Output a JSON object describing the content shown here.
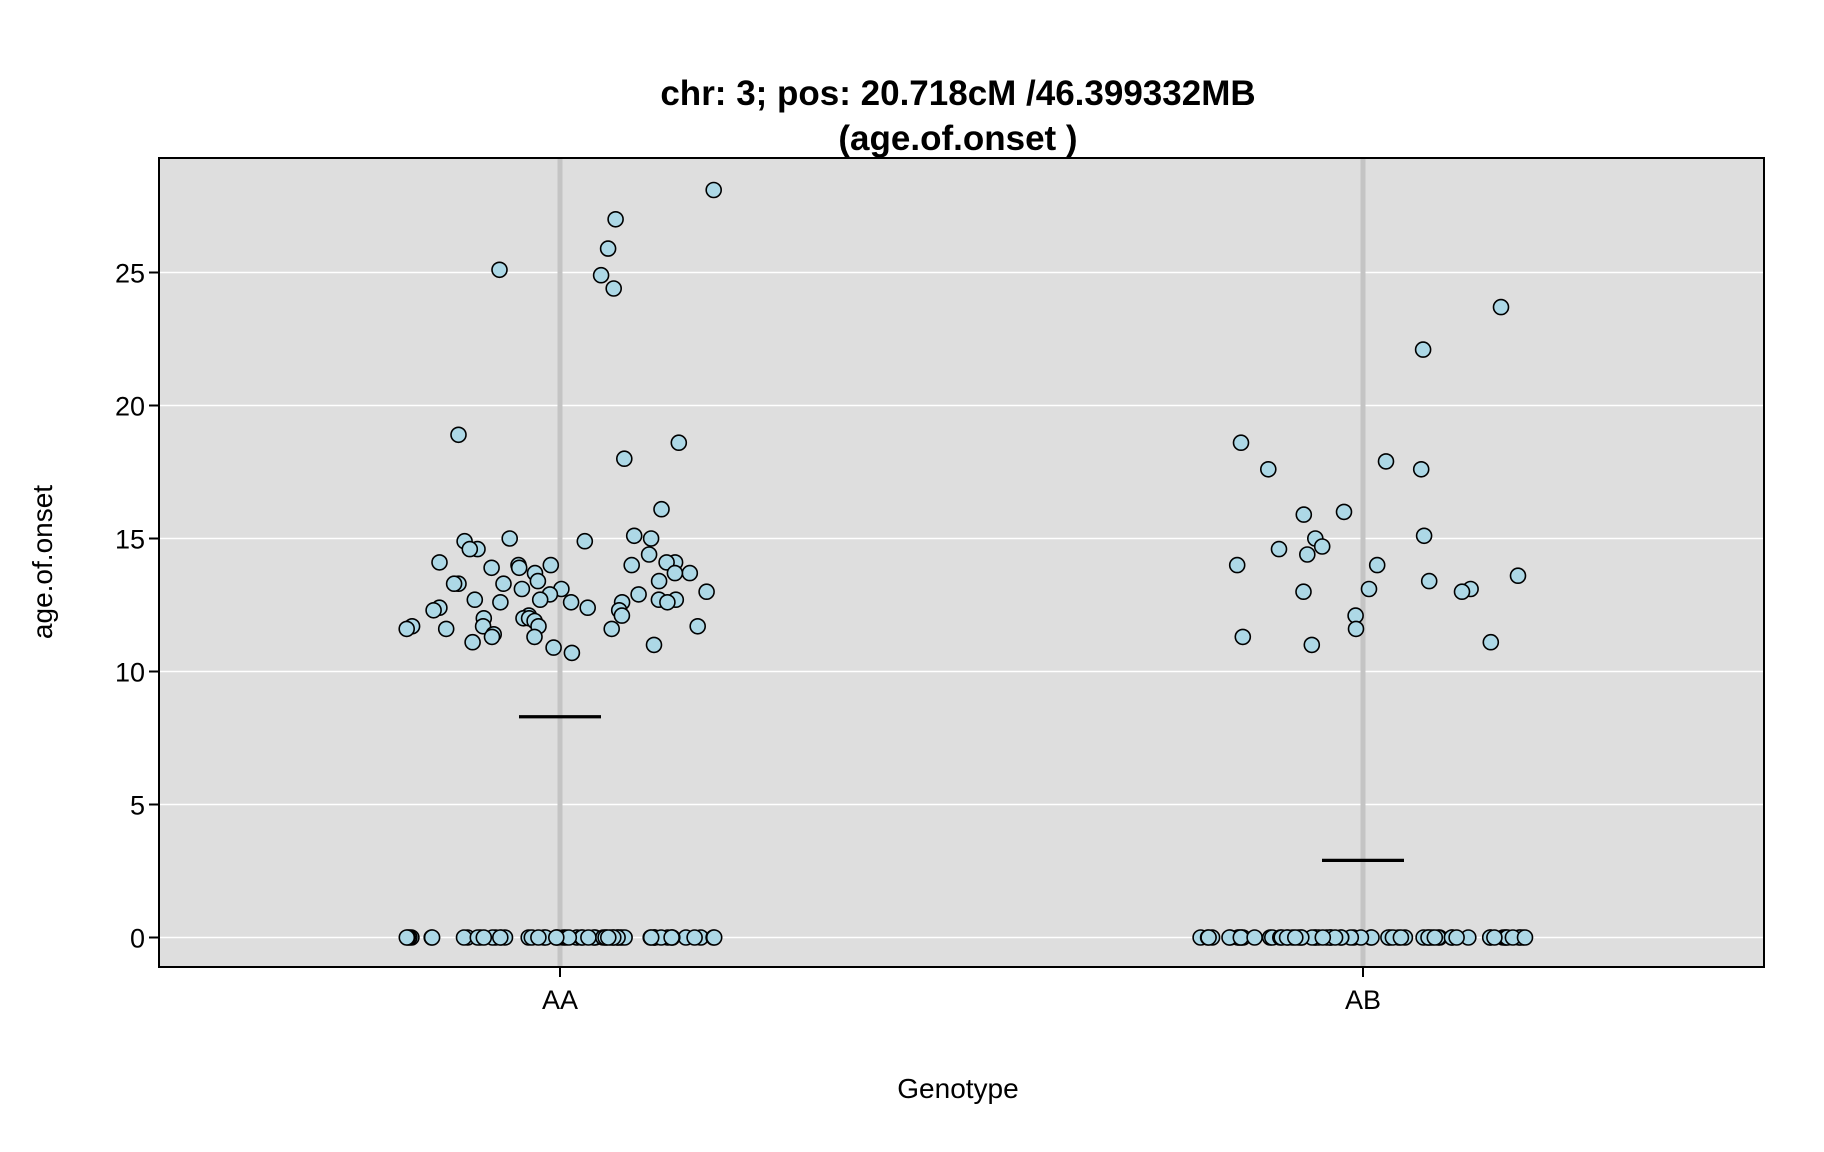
{
  "chart_data": {
    "type": "scatter",
    "title": "chr: 3; pos: 20.718cM /46.399332MB",
    "subtitle": "(age.of.onset )",
    "xlabel": "Genotype",
    "ylabel": "age.of.onset",
    "categories": [
      "AA",
      "AB"
    ],
    "ylim": [
      -1.1,
      29.2
    ],
    "yticks": [
      0,
      5,
      10,
      15,
      20,
      25
    ],
    "grid": true,
    "colors": {
      "panel_background": "#dedede",
      "point_fill": "#add8e6",
      "point_stroke": "#000000",
      "category_line": "#c4c4c4",
      "gridline": "#ffffff"
    },
    "means": [
      8.3,
      2.9
    ],
    "series": [
      {
        "category": "AA",
        "values": [
          25.9,
          25.1,
          24.9,
          28.1,
          27.0,
          24.4,
          18.9,
          18.6,
          18.0,
          16.1,
          15.1,
          15.0,
          15.0,
          14.9,
          14.9,
          14.6,
          14.6,
          14.4,
          14.1,
          14.1,
          14.1,
          14.0,
          14.0,
          14.0,
          13.9,
          13.9,
          13.7,
          13.7,
          13.7,
          13.4,
          13.4,
          13.3,
          13.3,
          13.3,
          13.1,
          13.1,
          13.0,
          12.9,
          12.9,
          12.7,
          12.7,
          12.7,
          12.7,
          12.6,
          12.6,
          12.6,
          12.6,
          12.4,
          12.4,
          12.3,
          12.3,
          12.1,
          12.1,
          12.0,
          12.0,
          12.0,
          11.9,
          11.7,
          11.7,
          11.7,
          11.7,
          11.6,
          11.6,
          11.6,
          11.4,
          11.3,
          11.3,
          11.1,
          11.0,
          10.9,
          10.7,
          0,
          0,
          0,
          0,
          0,
          0,
          0,
          0,
          0,
          0,
          0,
          0,
          0,
          0,
          0,
          0,
          0,
          0,
          0,
          0,
          0,
          0,
          0,
          0,
          0,
          0,
          0,
          0,
          0,
          0,
          0,
          0,
          0,
          0,
          0,
          0,
          0,
          0,
          0,
          0,
          0,
          0,
          0,
          0,
          0,
          0,
          0,
          0,
          0,
          0,
          0,
          0,
          0,
          0,
          0,
          0,
          0,
          0,
          0,
          0
        ]
      },
      {
        "category": "AB",
        "values": [
          23.7,
          22.1,
          18.6,
          17.9,
          17.6,
          17.6,
          16.0,
          15.9,
          15.1,
          15.0,
          14.7,
          14.6,
          14.4,
          14.0,
          14.0,
          13.6,
          13.4,
          13.1,
          13.1,
          13.0,
          13.0,
          12.1,
          11.6,
          11.3,
          11.1,
          11.0,
          0,
          0,
          0,
          0,
          0,
          0,
          0,
          0,
          0,
          0,
          0,
          0,
          0,
          0,
          0,
          0,
          0,
          0,
          0,
          0,
          0,
          0,
          0,
          0,
          0,
          0,
          0,
          0,
          0,
          0,
          0,
          0,
          0,
          0,
          0,
          0,
          0,
          0,
          0,
          0,
          0,
          0,
          0,
          0,
          0,
          0,
          0,
          0,
          0,
          0,
          0,
          0,
          0,
          0,
          0,
          0,
          0,
          0,
          0,
          0,
          0,
          0,
          0,
          0,
          0,
          0,
          0,
          0,
          0,
          0
        ]
      }
    ]
  }
}
